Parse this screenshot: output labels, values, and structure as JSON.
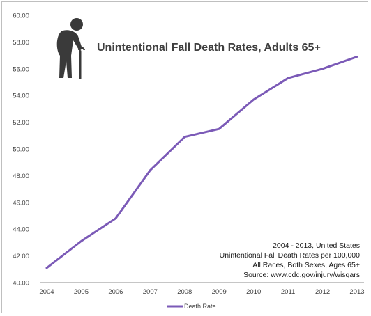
{
  "chart_data": {
    "type": "line",
    "title": "Unintentional Fall Death Rates, Adults 65+",
    "xlabel": "",
    "ylabel": "",
    "x": [
      "2004",
      "2005",
      "2006",
      "2007",
      "2008",
      "2009",
      "2010",
      "2011",
      "2012",
      "2013"
    ],
    "series": [
      {
        "name": "Death Rate",
        "values": [
          41.1,
          43.1,
          44.8,
          48.4,
          50.9,
          51.5,
          53.7,
          55.3,
          56.0,
          56.9
        ]
      }
    ],
    "ylim": [
      40,
      60
    ],
    "y_ticks": [
      "40.00",
      "42.00",
      "44.00",
      "46.00",
      "48.00",
      "50.00",
      "52.00",
      "54.00",
      "56.00",
      "58.00",
      "60.00"
    ],
    "grid": false,
    "legend_position": "bottom",
    "colors": {
      "line": "#7b5ab7",
      "axis": "#8c8c8c",
      "text": "#404040"
    },
    "icon": "elderly-person-with-cane-icon",
    "annotation": [
      "2004 - 2013, United States",
      "Unintentional Fall Death Rates per 100,000",
      "All Races, Both Sexes, Ages 65+",
      "Source: www.cdc.gov/injury/wisqars"
    ]
  }
}
